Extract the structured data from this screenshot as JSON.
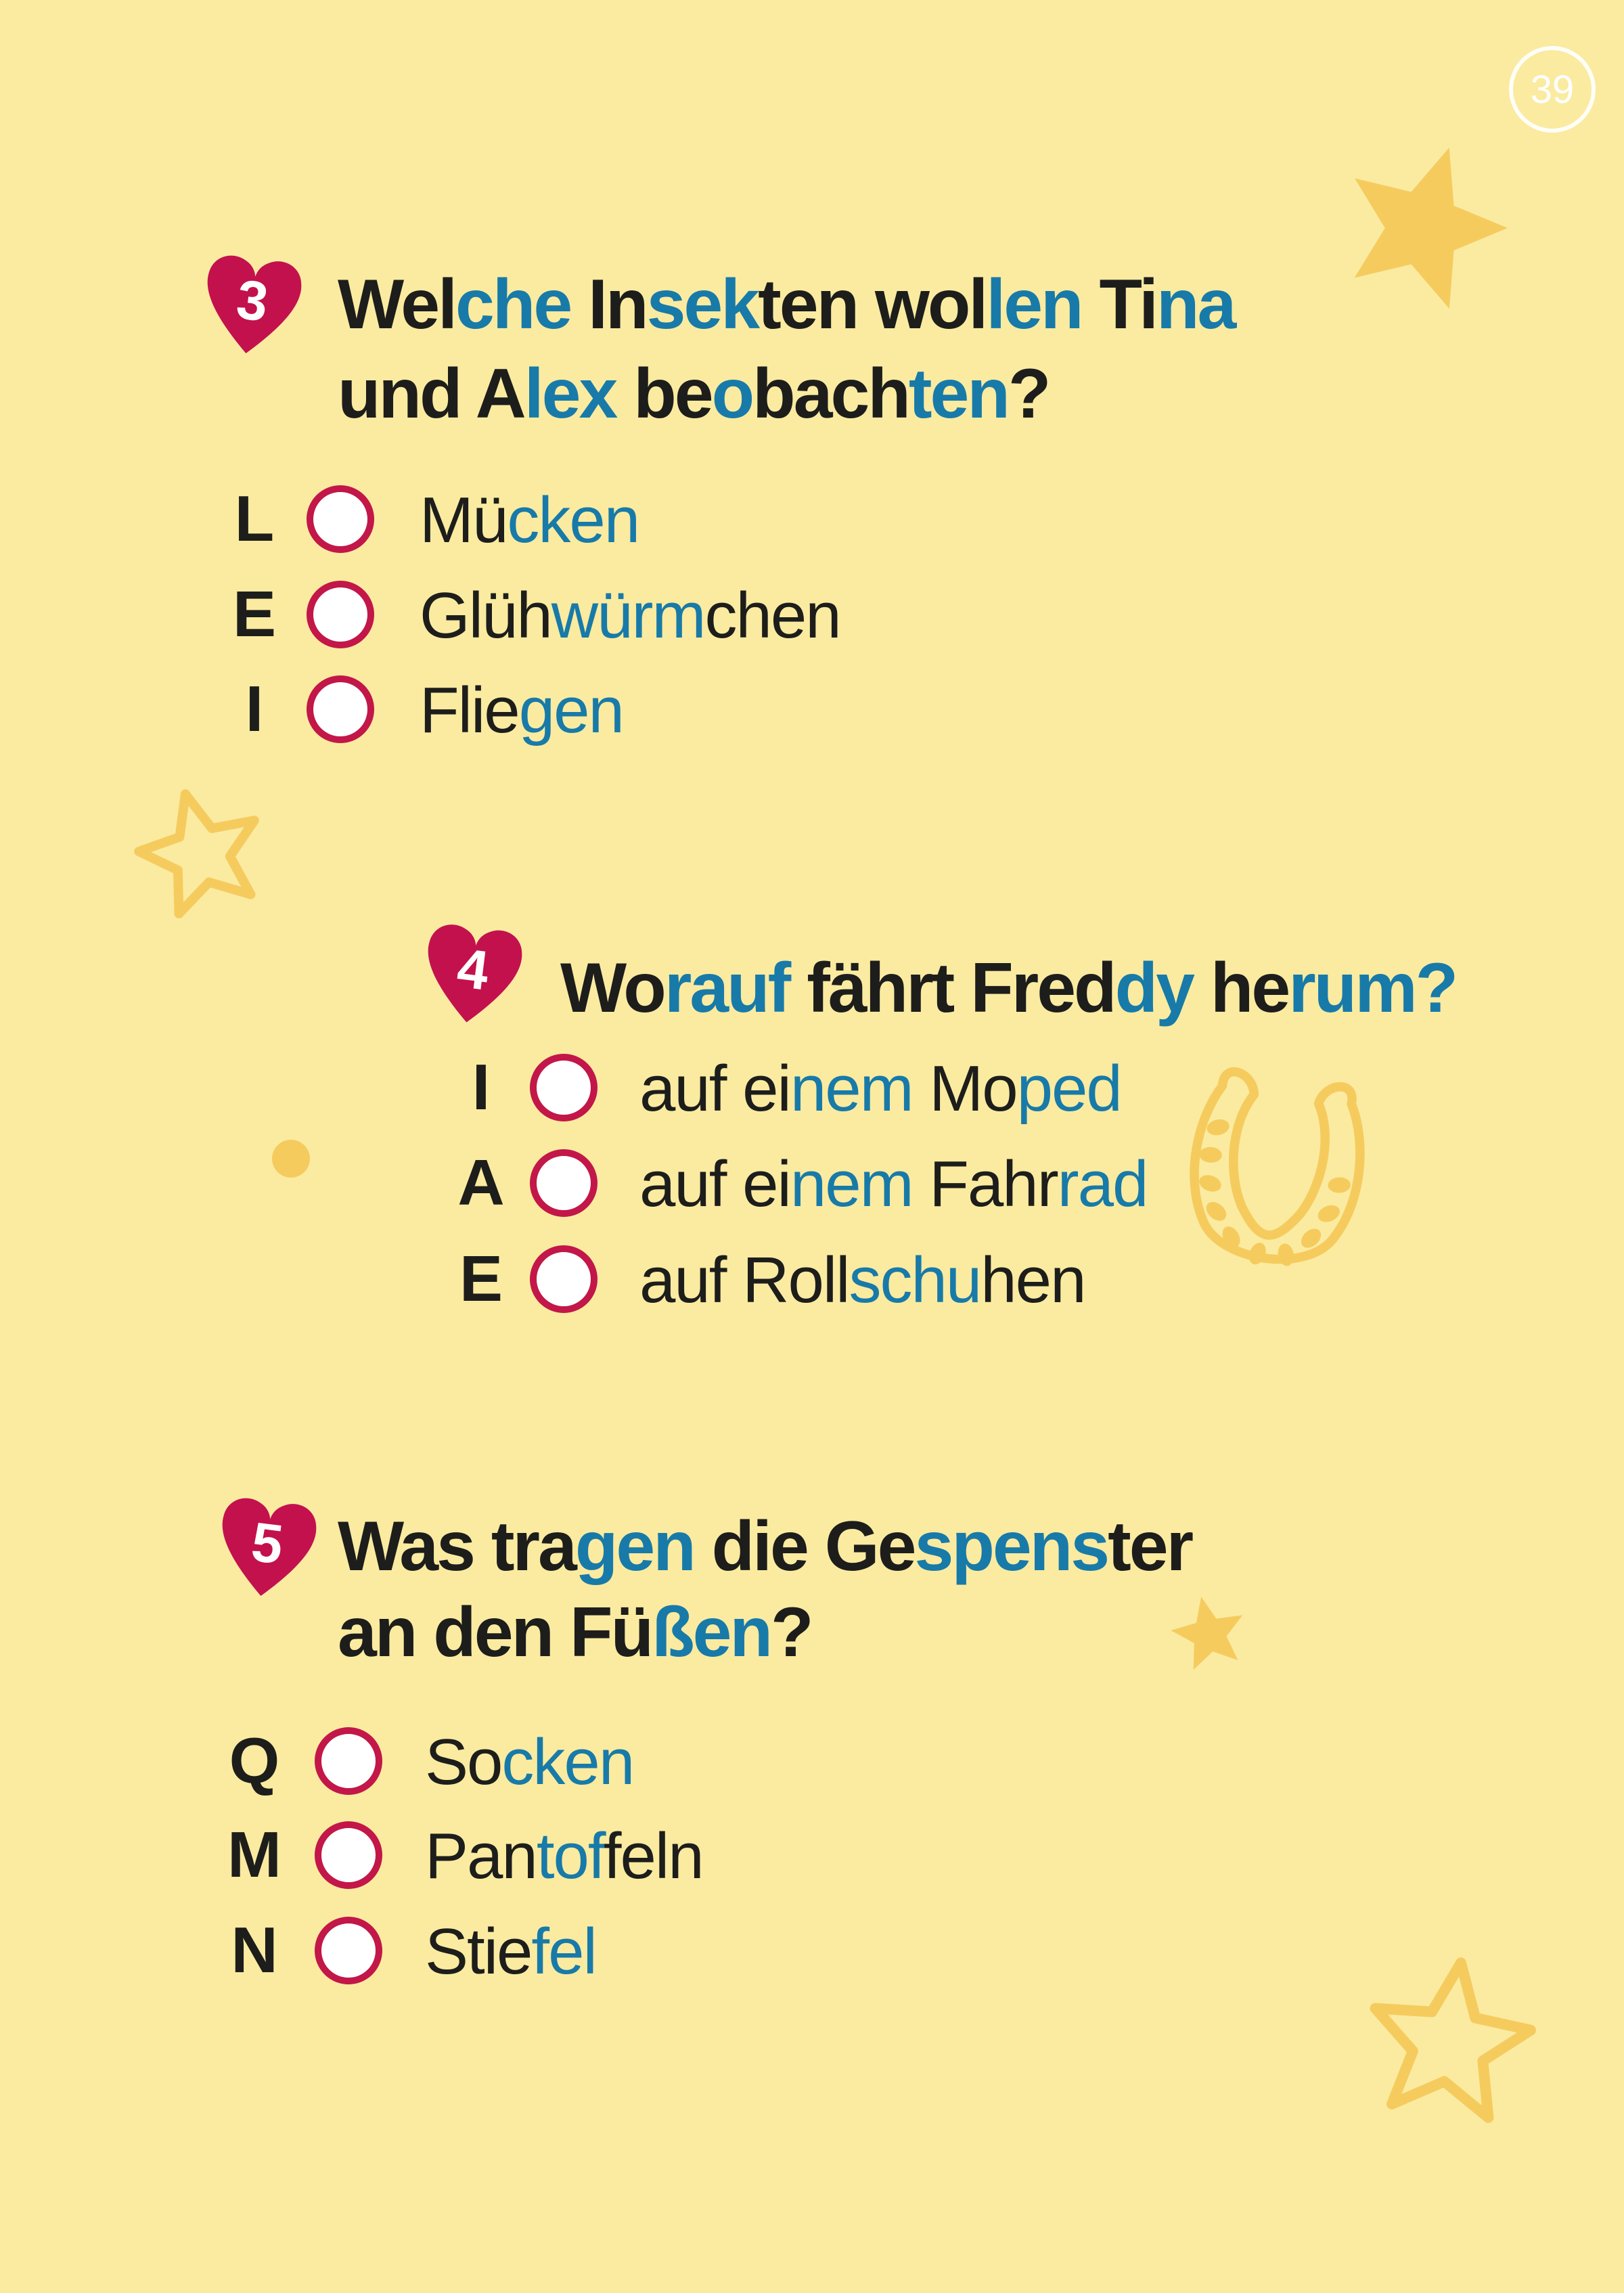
{
  "page": {
    "number": "39"
  },
  "colors": {
    "background": "#FAEBA1",
    "decoration_gold": "#F6CB5E",
    "accent_heart": "#C3114E",
    "circle_border": "#C21748",
    "circle_fill": "#FFFFFF",
    "text_dark": "#1D1D1B",
    "text_blue": "#187AA8",
    "page_number_color": "#FFFFFF"
  },
  "questions": [
    {
      "number": "3",
      "heading_lines": [
        [
          {
            "t": "Wel",
            "c": "dark"
          },
          {
            "t": "che",
            "c": "blue"
          },
          {
            "t": " In",
            "c": "dark"
          },
          {
            "t": "sek",
            "c": "blue"
          },
          {
            "t": "ten wol",
            "c": "dark"
          },
          {
            "t": "len",
            "c": "blue"
          },
          {
            "t": " Ti",
            "c": "dark"
          },
          {
            "t": "na",
            "c": "blue"
          }
        ],
        [
          {
            "t": "und A",
            "c": "dark"
          },
          {
            "t": "lex",
            "c": "blue"
          },
          {
            "t": " be",
            "c": "dark"
          },
          {
            "t": "o",
            "c": "blue"
          },
          {
            "t": "bach",
            "c": "dark"
          },
          {
            "t": "ten",
            "c": "blue"
          },
          {
            "t": "?",
            "c": "dark"
          }
        ]
      ],
      "options": [
        {
          "letter": "L",
          "segments": [
            {
              "t": "Mü",
              "c": "dark"
            },
            {
              "t": "cken",
              "c": "blue"
            }
          ]
        },
        {
          "letter": "E",
          "segments": [
            {
              "t": "Glüh",
              "c": "dark"
            },
            {
              "t": "würm",
              "c": "blue"
            },
            {
              "t": "chen",
              "c": "dark"
            }
          ]
        },
        {
          "letter": "I",
          "segments": [
            {
              "t": "Flie",
              "c": "dark"
            },
            {
              "t": "gen",
              "c": "blue"
            }
          ]
        }
      ]
    },
    {
      "number": "4",
      "heading_lines": [
        [
          {
            "t": "Wo",
            "c": "dark"
          },
          {
            "t": "rauf",
            "c": "blue"
          },
          {
            "t": " fährt Fred",
            "c": "dark"
          },
          {
            "t": "dy",
            "c": "blue"
          },
          {
            "t": " he",
            "c": "dark"
          },
          {
            "t": "rum?",
            "c": "blue"
          }
        ]
      ],
      "options": [
        {
          "letter": "I",
          "segments": [
            {
              "t": "auf ei",
              "c": "dark"
            },
            {
              "t": "nem",
              "c": "blue"
            },
            {
              "t": " Mo",
              "c": "dark"
            },
            {
              "t": "ped",
              "c": "blue"
            }
          ]
        },
        {
          "letter": "A",
          "segments": [
            {
              "t": "auf ei",
              "c": "dark"
            },
            {
              "t": "nem",
              "c": "blue"
            },
            {
              "t": " Fahr",
              "c": "dark"
            },
            {
              "t": "rad",
              "c": "blue"
            }
          ]
        },
        {
          "letter": "E",
          "segments": [
            {
              "t": "auf Roll",
              "c": "dark"
            },
            {
              "t": "schu",
              "c": "blue"
            },
            {
              "t": "hen",
              "c": "dark"
            }
          ]
        }
      ]
    },
    {
      "number": "5",
      "heading_lines": [
        [
          {
            "t": "Was tra",
            "c": "dark"
          },
          {
            "t": "gen",
            "c": "blue"
          },
          {
            "t": " die Ge",
            "c": "dark"
          },
          {
            "t": "spens",
            "c": "blue"
          },
          {
            "t": "ter",
            "c": "dark"
          }
        ],
        [
          {
            "t": "an den Fü",
            "c": "dark"
          },
          {
            "t": "ßen",
            "c": "blue"
          },
          {
            "t": "?",
            "c": "dark"
          }
        ]
      ],
      "options": [
        {
          "letter": "Q",
          "segments": [
            {
              "t": "So",
              "c": "dark"
            },
            {
              "t": "cken",
              "c": "blue"
            }
          ]
        },
        {
          "letter": "M",
          "segments": [
            {
              "t": "Pan",
              "c": "dark"
            },
            {
              "t": "tof",
              "c": "blue"
            },
            {
              "t": "feln",
              "c": "dark"
            }
          ]
        },
        {
          "letter": "N",
          "segments": [
            {
              "t": "Stie",
              "c": "dark"
            },
            {
              "t": "fel",
              "c": "blue"
            }
          ]
        }
      ]
    }
  ],
  "decorations": [
    {
      "name": "star-solid-top-right",
      "shape": "solid-star"
    },
    {
      "name": "star-outline-left",
      "shape": "outline-star"
    },
    {
      "name": "dot-left",
      "shape": "dot"
    },
    {
      "name": "horseshoe-right",
      "shape": "horseshoe"
    },
    {
      "name": "star-solid-mid-right",
      "shape": "solid-star"
    },
    {
      "name": "star-outline-bottom-right",
      "shape": "outline-star"
    }
  ]
}
